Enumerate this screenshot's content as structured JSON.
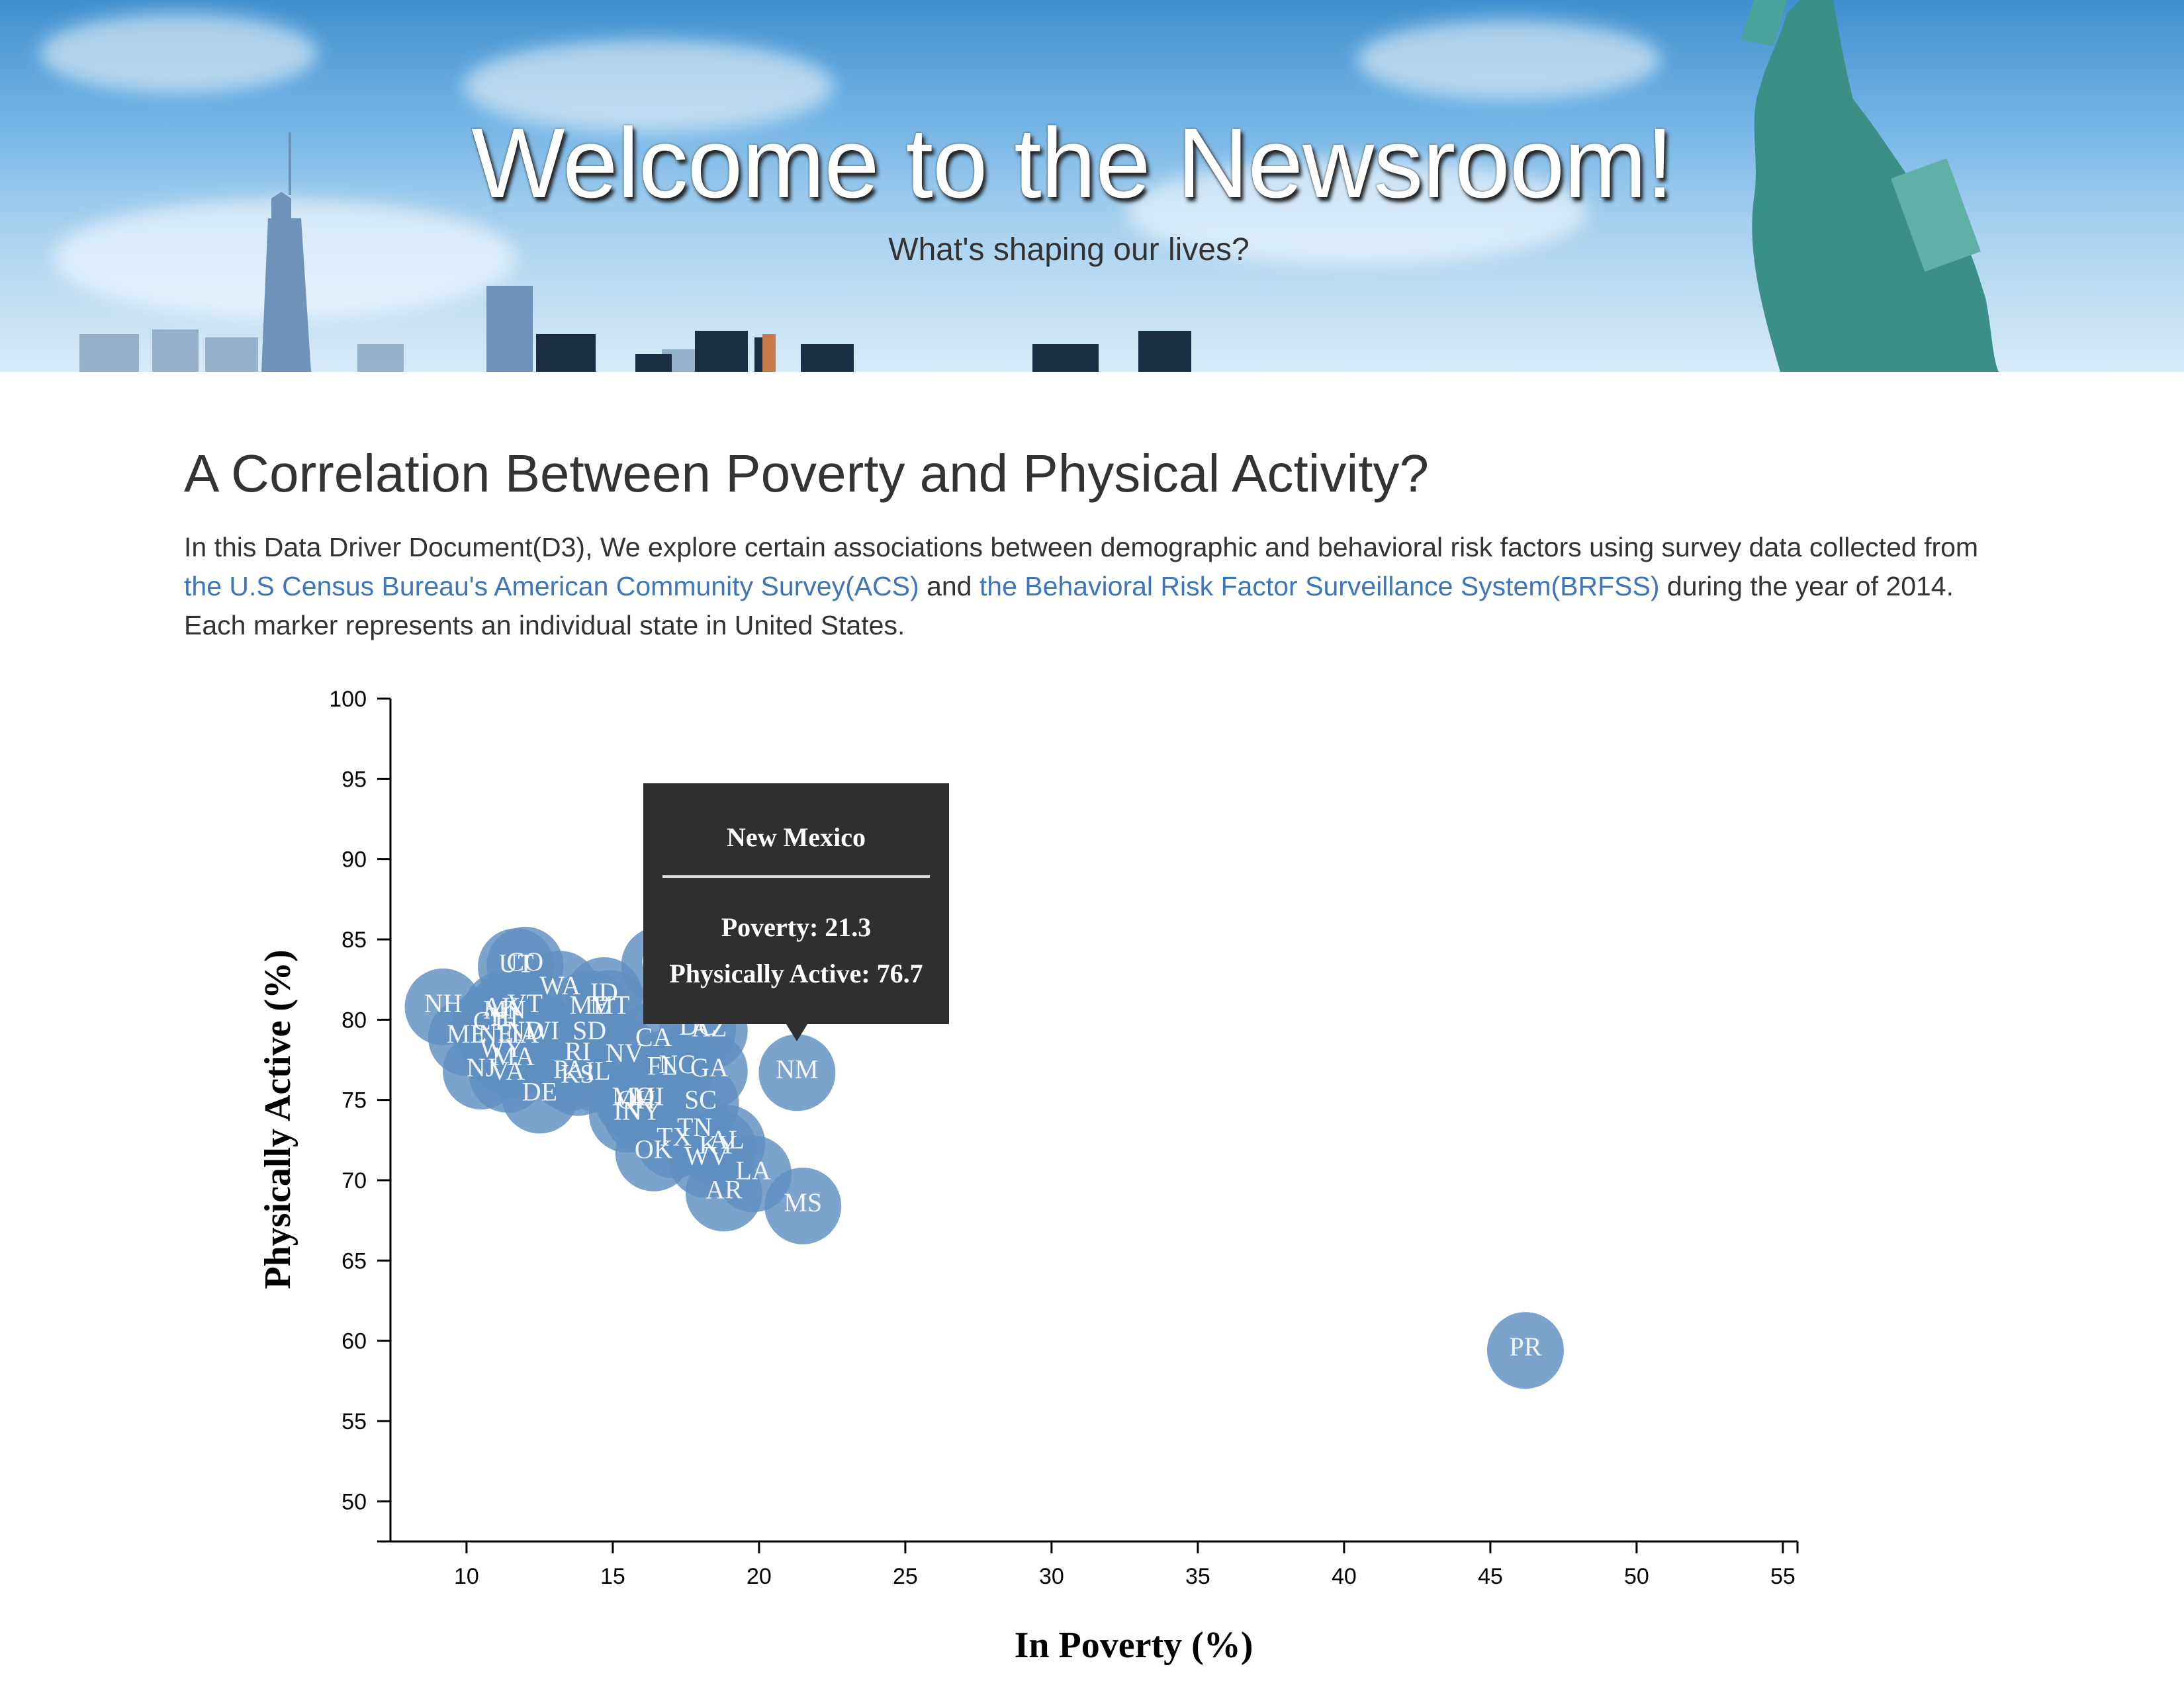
{
  "hero": {
    "title": "Welcome to the Newsroom!",
    "subtitle": "What's shaping our lives?"
  },
  "article": {
    "title": "A Correlation Between Poverty and Physical Activity?",
    "intro_1": "In this Data Driver Document(D3), We explore certain associations between demographic and behavioral risk factors using survey data collected from ",
    "link_acs": "the U.S Census Bureau's American Community Survey(ACS)",
    "intro_and": " and ",
    "link_brfss": "the Behavioral Risk Factor Surveillance System(BRFSS)",
    "intro_2": " during the year of 2014. Each marker represents an individual state in United States."
  },
  "tooltip": {
    "name": "New Mexico",
    "poverty": "Poverty: 21.3",
    "active": "Physically Active: 76.7"
  },
  "colors": {
    "marker": "#5f8fbf",
    "tooltip_bg": "#2f2f2f"
  },
  "chart_data": {
    "type": "scatter",
    "xlabel": "In Poverty (%)",
    "ylabel": "Physically Active (%)",
    "xlim": [
      7.4,
      55.5
    ],
    "ylim": [
      47.5,
      100
    ],
    "xticks": [
      10,
      15,
      20,
      25,
      30,
      35,
      40,
      45,
      50,
      55
    ],
    "yticks": [
      50,
      55,
      60,
      65,
      70,
      75,
      80,
      85,
      90,
      95,
      100
    ],
    "grid": false,
    "points": [
      {
        "abbr": "NH",
        "x": 9.2,
        "y": 80.8
      },
      {
        "abbr": "UT",
        "x": 11.7,
        "y": 83.3
      },
      {
        "abbr": "CO",
        "x": 12.0,
        "y": 83.4
      },
      {
        "abbr": "WA",
        "x": 13.2,
        "y": 81.9
      },
      {
        "abbr": "AK",
        "x": 11.2,
        "y": 80.6
      },
      {
        "abbr": "VT",
        "x": 12.0,
        "y": 80.8
      },
      {
        "abbr": "MN",
        "x": 11.3,
        "y": 80.4
      },
      {
        "abbr": "HI",
        "x": 11.3,
        "y": 80.0
      },
      {
        "abbr": "CT",
        "x": 10.8,
        "y": 79.7
      },
      {
        "abbr": "ME",
        "x": 10.0,
        "y": 78.9
      },
      {
        "abbr": "NE",
        "x": 11.0,
        "y": 78.9
      },
      {
        "abbr": "IA",
        "x": 12.0,
        "y": 78.9
      },
      {
        "abbr": "WY",
        "x": 11.2,
        "y": 78.0
      },
      {
        "abbr": "NJ",
        "x": 10.5,
        "y": 76.8
      },
      {
        "abbr": "VA",
        "x": 11.4,
        "y": 76.6
      },
      {
        "abbr": "MA",
        "x": 11.6,
        "y": 77.5
      },
      {
        "abbr": "DE",
        "x": 12.5,
        "y": 75.3
      },
      {
        "abbr": "WI",
        "x": 12.6,
        "y": 79.1
      },
      {
        "abbr": "ND",
        "x": 12.0,
        "y": 79.1
      },
      {
        "abbr": "SD",
        "x": 14.2,
        "y": 79.1
      },
      {
        "abbr": "ID",
        "x": 14.7,
        "y": 81.5
      },
      {
        "abbr": "ME2",
        "x": 14.2,
        "y": 80.7
      },
      {
        "abbr": "MT",
        "x": 14.9,
        "y": 80.7
      },
      {
        "abbr": "RI",
        "x": 13.8,
        "y": 77.8
      },
      {
        "abbr": "PA",
        "x": 13.5,
        "y": 76.7
      },
      {
        "abbr": "KS",
        "x": 13.8,
        "y": 76.4
      },
      {
        "abbr": "IL",
        "x": 14.5,
        "y": 76.6
      },
      {
        "abbr": "NV",
        "x": 15.4,
        "y": 77.7
      },
      {
        "abbr": "MO",
        "x": 15.7,
        "y": 75.0
      },
      {
        "abbr": "IN",
        "x": 15.5,
        "y": 74.1
      },
      {
        "abbr": "OH",
        "x": 15.8,
        "y": 74.8
      },
      {
        "abbr": "MI",
        "x": 16.2,
        "y": 75.0
      },
      {
        "abbr": "CA",
        "x": 16.4,
        "y": 78.7
      },
      {
        "abbr": "OR",
        "x": 16.6,
        "y": 83.4
      },
      {
        "abbr": "NY",
        "x": 16.0,
        "y": 74.1
      },
      {
        "abbr": "FL",
        "x": 16.7,
        "y": 76.9
      },
      {
        "abbr": "NC",
        "x": 17.2,
        "y": 77.0
      },
      {
        "abbr": "DC",
        "x": 17.9,
        "y": 79.4
      },
      {
        "abbr": "AZ",
        "x": 18.3,
        "y": 79.3
      },
      {
        "abbr": "GA",
        "x": 18.3,
        "y": 76.8
      },
      {
        "abbr": "SC",
        "x": 18.0,
        "y": 74.8
      },
      {
        "abbr": "TN",
        "x": 17.8,
        "y": 73.1
      },
      {
        "abbr": "TX",
        "x": 17.1,
        "y": 72.5
      },
      {
        "abbr": "AL",
        "x": 18.9,
        "y": 72.3
      },
      {
        "abbr": "KY",
        "x": 18.6,
        "y": 72.0
      },
      {
        "abbr": "OK",
        "x": 16.4,
        "y": 71.7
      },
      {
        "abbr": "WV",
        "x": 18.2,
        "y": 71.3
      },
      {
        "abbr": "LA",
        "x": 19.8,
        "y": 70.4
      },
      {
        "abbr": "AR",
        "x": 18.8,
        "y": 69.2
      },
      {
        "abbr": "NM",
        "x": 21.3,
        "y": 76.7
      },
      {
        "abbr": "MS",
        "x": 21.5,
        "y": 68.4
      },
      {
        "abbr": "PR",
        "x": 46.2,
        "y": 59.4
      }
    ]
  }
}
